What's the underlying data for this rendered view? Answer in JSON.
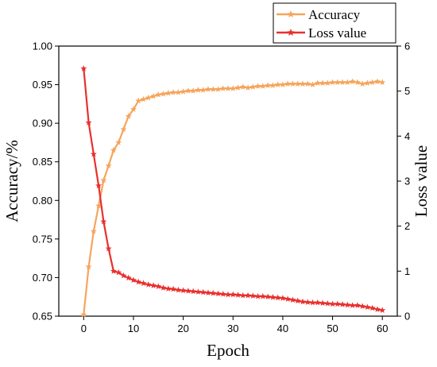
{
  "chart_data": {
    "type": "line",
    "xlabel": "Epoch",
    "ylabel_left": "Accuracy/%",
    "ylabel_right": "Loss value",
    "xlim": [
      -5,
      63
    ],
    "ylim_left": [
      0.65,
      1.0
    ],
    "ylim_right": [
      0,
      6
    ],
    "xticks": [
      0,
      10,
      20,
      30,
      40,
      50,
      60
    ],
    "yticks_left": [
      "0.65",
      "0.70",
      "0.75",
      "0.80",
      "0.85",
      "0.90",
      "0.95",
      "1.00"
    ],
    "yticks_right": [
      "0",
      "1",
      "2",
      "3",
      "4",
      "5",
      "6"
    ],
    "grid": false,
    "legend_position": "top-right, outside plot area",
    "series": [
      {
        "name": "Accuracy",
        "axis": "left",
        "color": "#F5A55C",
        "marker": "star",
        "x": [
          0,
          1,
          2,
          3,
          4,
          5,
          6,
          7,
          8,
          9,
          10,
          11,
          12,
          13,
          14,
          15,
          16,
          17,
          18,
          19,
          20,
          21,
          22,
          23,
          24,
          25,
          26,
          27,
          28,
          29,
          30,
          31,
          32,
          33,
          34,
          35,
          36,
          37,
          38,
          39,
          40,
          41,
          42,
          43,
          44,
          45,
          46,
          47,
          48,
          49,
          50,
          51,
          52,
          53,
          54,
          55,
          56,
          57,
          58,
          59,
          60
        ],
        "values": [
          0.652,
          0.714,
          0.76,
          0.793,
          0.826,
          0.845,
          0.865,
          0.875,
          0.892,
          0.909,
          0.918,
          0.929,
          0.931,
          0.933,
          0.935,
          0.937,
          0.938,
          0.939,
          0.94,
          0.94,
          0.941,
          0.942,
          0.942,
          0.943,
          0.943,
          0.944,
          0.944,
          0.944,
          0.945,
          0.945,
          0.945,
          0.946,
          0.947,
          0.946,
          0.947,
          0.948,
          0.948,
          0.949,
          0.949,
          0.95,
          0.95,
          0.951,
          0.951,
          0.951,
          0.951,
          0.951,
          0.95,
          0.952,
          0.952,
          0.952,
          0.953,
          0.953,
          0.953,
          0.953,
          0.954,
          0.953,
          0.951,
          0.952,
          0.953,
          0.954,
          0.953
        ]
      },
      {
        "name": "Loss value",
        "axis": "right",
        "color": "#E8302E",
        "marker": "star",
        "x": [
          0,
          1,
          2,
          3,
          4,
          5,
          6,
          7,
          8,
          9,
          10,
          11,
          12,
          13,
          14,
          15,
          16,
          17,
          18,
          19,
          20,
          21,
          22,
          23,
          24,
          25,
          26,
          27,
          28,
          29,
          30,
          31,
          32,
          33,
          34,
          35,
          36,
          37,
          38,
          39,
          40,
          41,
          42,
          43,
          44,
          45,
          46,
          47,
          48,
          49,
          50,
          51,
          52,
          53,
          54,
          55,
          56,
          57,
          58,
          59,
          60
        ],
        "values": [
          5.5,
          4.3,
          3.6,
          2.9,
          2.1,
          1.5,
          1.0,
          0.97,
          0.9,
          0.85,
          0.8,
          0.76,
          0.73,
          0.7,
          0.68,
          0.66,
          0.63,
          0.61,
          0.6,
          0.58,
          0.57,
          0.56,
          0.55,
          0.54,
          0.53,
          0.52,
          0.51,
          0.5,
          0.49,
          0.48,
          0.48,
          0.47,
          0.46,
          0.46,
          0.45,
          0.44,
          0.44,
          0.43,
          0.42,
          0.41,
          0.4,
          0.38,
          0.36,
          0.34,
          0.32,
          0.31,
          0.3,
          0.3,
          0.29,
          0.28,
          0.27,
          0.27,
          0.26,
          0.25,
          0.24,
          0.24,
          0.22,
          0.2,
          0.18,
          0.15,
          0.13
        ]
      }
    ]
  }
}
